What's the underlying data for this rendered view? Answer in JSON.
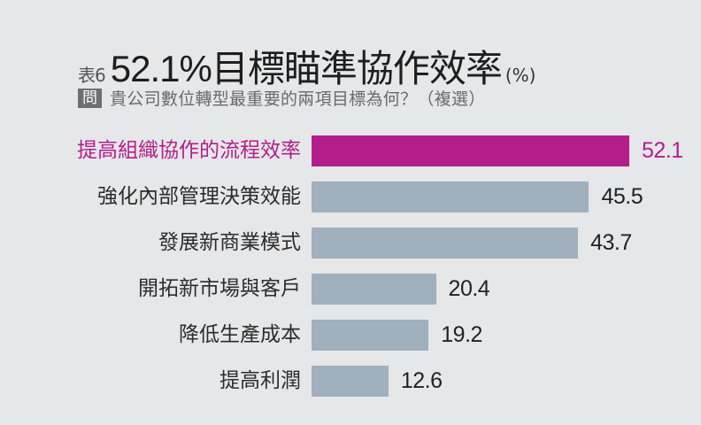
{
  "header": {
    "table_no": "表6",
    "title": "52.1%目標瞄準協作效率",
    "unit": "(%)",
    "question_badge": "問",
    "question": "貴公司數位轉型最重要的兩項目標為何？（複選）"
  },
  "colors": {
    "highlight": "#b41e8c",
    "bar": "#a0b0bc",
    "background": "#e6e7e9"
  },
  "bars": [
    {
      "label": "提高組織協作的流程效率",
      "value": "52.1"
    },
    {
      "label": "強化內部管理決策效能",
      "value": "45.5"
    },
    {
      "label": "發展新商業模式",
      "value": "43.7"
    },
    {
      "label": "開拓新市場與客戶",
      "value": "20.4"
    },
    {
      "label": "降低生產成本",
      "value": "19.2"
    },
    {
      "label": "提高利潤",
      "value": "12.6"
    }
  ],
  "chart_data": {
    "type": "bar",
    "orientation": "horizontal",
    "title": "表6 52.1%目標瞄準協作效率 (%)",
    "subtitle": "問 貴公司數位轉型最重要的兩項目標為何？（複選）",
    "categories": [
      "提高組織協作的流程效率",
      "強化內部管理決策效能",
      "發展新商業模式",
      "開拓新市場與客戶",
      "降低生產成本",
      "提高利潤"
    ],
    "values": [
      52.1,
      45.5,
      43.7,
      20.4,
      19.2,
      12.6
    ],
    "xlabel": "",
    "ylabel": "",
    "unit": "%",
    "highlighted_category": "提高組織協作的流程效率",
    "grid": false,
    "legend": null,
    "data_labels": true
  }
}
